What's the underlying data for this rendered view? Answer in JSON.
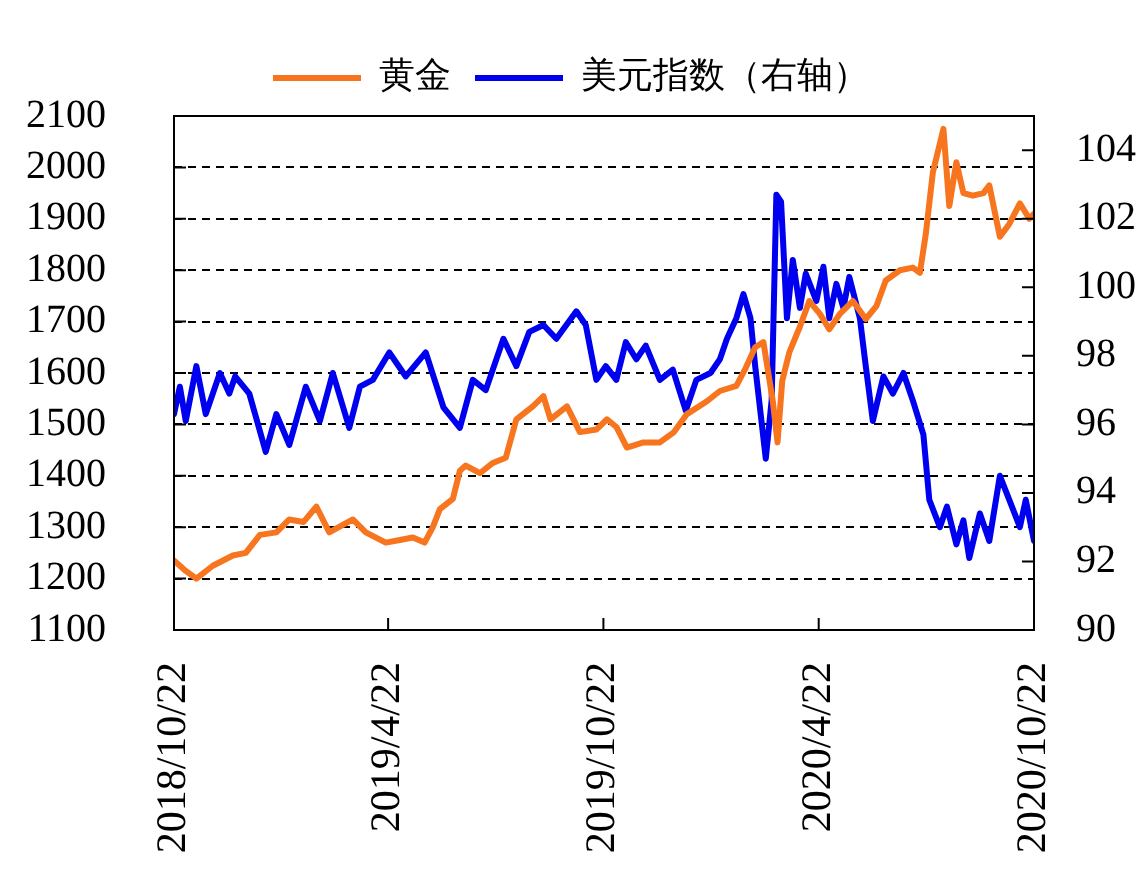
{
  "chart_data": {
    "type": "line",
    "series": [
      {
        "name": "黄金",
        "color": "#f7751e",
        "x": [
          "2018-10-22",
          "2018-11-01",
          "2018-11-10",
          "2018-11-24",
          "2018-12-11",
          "2018-12-22",
          "2019-01-03",
          "2019-01-17",
          "2019-01-28",
          "2019-02-09",
          "2019-02-20",
          "2019-03-03",
          "2019-03-23",
          "2019-04-03",
          "2019-04-20",
          "2019-05-02",
          "2019-05-13",
          "2019-05-23",
          "2019-05-30",
          "2019-06-05",
          "2019-06-16",
          "2019-06-22",
          "2019-06-27",
          "2019-07-09",
          "2019-07-20",
          "2019-07-31",
          "2019-08-09",
          "2019-08-23",
          "2019-09-01",
          "2019-09-07",
          "2019-09-21",
          "2019-10-02",
          "2019-10-16",
          "2019-10-25",
          "2019-11-02",
          "2019-11-11",
          "2019-11-25",
          "2019-12-09",
          "2019-12-21",
          "2020-01-01",
          "2020-01-18",
          "2020-01-29",
          "2020-02-12",
          "2020-02-20",
          "2020-02-28",
          "2020-03-06",
          "2020-03-14",
          "2020-03-18",
          "2020-03-22",
          "2020-03-28",
          "2020-04-06",
          "2020-04-14",
          "2020-04-23",
          "2020-05-01",
          "2020-05-10",
          "2020-05-21",
          "2020-06-01",
          "2020-06-10",
          "2020-06-18",
          "2020-06-30",
          "2020-07-11",
          "2020-07-17",
          "2020-07-22",
          "2020-07-28",
          "2020-08-06",
          "2020-08-11",
          "2020-08-17",
          "2020-08-23",
          "2020-08-31",
          "2020-09-09",
          "2020-09-14",
          "2020-09-23",
          "2020-10-01",
          "2020-10-10",
          "2020-10-18",
          "2020-10-22"
        ],
        "values": [
          1235,
          1215,
          1200,
          1225,
          1245,
          1250,
          1285,
          1290,
          1315,
          1310,
          1340,
          1290,
          1315,
          1290,
          1270,
          1275,
          1280,
          1270,
          1300,
          1335,
          1355,
          1410,
          1420,
          1405,
          1425,
          1435,
          1510,
          1535,
          1555,
          1510,
          1535,
          1485,
          1490,
          1510,
          1495,
          1455,
          1465,
          1465,
          1485,
          1520,
          1545,
          1565,
          1575,
          1610,
          1650,
          1660,
          1545,
          1465,
          1585,
          1640,
          1690,
          1740,
          1715,
          1685,
          1715,
          1740,
          1705,
          1730,
          1780,
          1800,
          1805,
          1795,
          1870,
          1990,
          2075,
          1925,
          2010,
          1950,
          1945,
          1950,
          1965,
          1865,
          1890,
          1930,
          1900,
          1910
        ]
      },
      {
        "name": "美元指数（右轴）",
        "color": "#0000f0",
        "axis": "y2",
        "x": [
          "2018-10-22",
          "2018-10-27",
          "2018-11-01",
          "2018-11-10",
          "2018-11-18",
          "2018-11-30",
          "2018-12-08",
          "2018-12-13",
          "2018-12-25",
          "2019-01-08",
          "2019-01-17",
          "2019-01-28",
          "2019-02-11",
          "2019-02-23",
          "2019-03-06",
          "2019-03-20",
          "2019-03-29",
          "2019-04-09",
          "2019-04-23",
          "2019-05-07",
          "2019-05-24",
          "2019-06-08",
          "2019-06-22",
          "2019-07-03",
          "2019-07-14",
          "2019-07-29",
          "2019-08-09",
          "2019-08-20",
          "2019-09-01",
          "2019-09-12",
          "2019-09-29",
          "2019-10-07",
          "2019-10-16",
          "2019-10-24",
          "2019-11-02",
          "2019-11-10",
          "2019-11-19",
          "2019-11-27",
          "2019-12-09",
          "2019-12-20",
          "2019-12-31",
          "2020-01-09",
          "2020-01-21",
          "2020-01-29",
          "2020-02-04",
          "2020-02-12",
          "2020-02-18",
          "2020-02-24",
          "2020-02-28",
          "2020-03-08",
          "2020-03-13",
          "2020-03-17",
          "2020-03-21",
          "2020-03-26",
          "2020-03-31",
          "2020-04-06",
          "2020-04-11",
          "2020-04-20",
          "2020-04-26",
          "2020-05-01",
          "2020-05-07",
          "2020-05-13",
          "2020-05-18",
          "2020-05-27",
          "2020-06-01",
          "2020-06-07",
          "2020-06-16",
          "2020-06-24",
          "2020-07-03",
          "2020-07-11",
          "2020-07-20",
          "2020-07-25",
          "2020-08-03",
          "2020-08-09",
          "2020-08-17",
          "2020-08-23",
          "2020-08-28",
          "2020-09-06",
          "2020-09-14",
          "2020-09-23",
          "2020-10-01",
          "2020-10-10",
          "2020-10-15",
          "2020-10-22"
        ],
        "values": [
          96.3,
          97.1,
          96.1,
          97.7,
          96.3,
          97.5,
          96.9,
          97.4,
          96.9,
          95.2,
          96.3,
          95.4,
          97.1,
          96.1,
          97.5,
          95.9,
          97.1,
          97.3,
          98.1,
          97.4,
          98.1,
          96.5,
          95.9,
          97.3,
          97.0,
          98.5,
          97.7,
          98.7,
          98.9,
          98.5,
          99.3,
          98.9,
          97.3,
          97.7,
          97.3,
          98.4,
          97.9,
          98.3,
          97.3,
          97.6,
          96.4,
          97.3,
          97.5,
          97.9,
          98.5,
          99.1,
          99.8,
          99.1,
          97.7,
          95.0,
          96.7,
          102.7,
          102.5,
          99.1,
          100.8,
          99.4,
          100.4,
          99.6,
          100.6,
          99.1,
          100.1,
          99.4,
          100.3,
          99.1,
          97.7,
          96.1,
          97.4,
          96.9,
          97.5,
          96.7,
          95.7,
          93.8,
          93.0,
          93.6,
          92.5,
          93.2,
          92.1,
          93.4,
          92.6,
          94.5,
          93.8,
          93.0,
          93.8,
          92.6
        ]
      }
    ],
    "xlim": [
      "2018-10-22",
      "2020-10-22"
    ],
    "xticks": [
      {
        "value": "2018-10-22",
        "label": "2018/10/22"
      },
      {
        "value": "2019-04-22",
        "label": "2019/4/22"
      },
      {
        "value": "2019-10-22",
        "label": "2019/10/22"
      },
      {
        "value": "2020-04-22",
        "label": "2020/4/22"
      },
      {
        "value": "2020-10-22",
        "label": "2020/10/22"
      }
    ],
    "ylim": [
      1100,
      2100
    ],
    "yticks": [
      1100,
      1200,
      1300,
      1400,
      1500,
      1600,
      1700,
      1800,
      1900,
      2000,
      2100
    ],
    "y2lim": [
      90,
      105
    ],
    "y2ticks": [
      90,
      92,
      94,
      96,
      98,
      100,
      102,
      104
    ],
    "grid": "y",
    "legend": "top",
    "marker": "none",
    "line_style": "solid"
  }
}
